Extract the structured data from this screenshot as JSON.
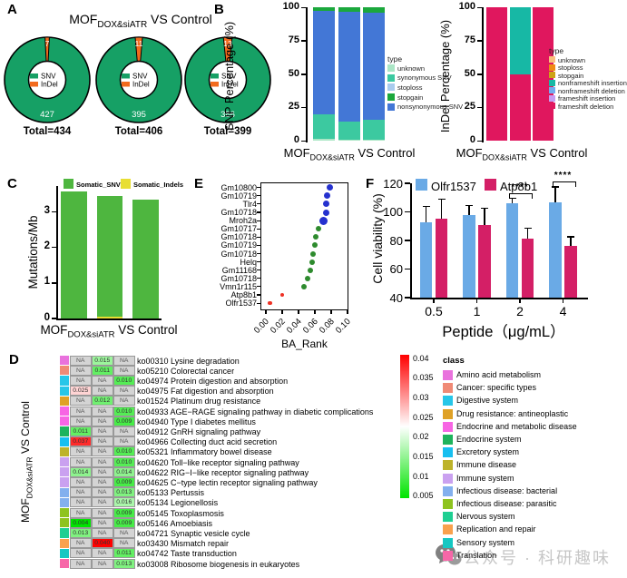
{
  "panel_labels": {
    "A": "A",
    "B": "B",
    "C": "C",
    "D": "D",
    "E": "E",
    "F": "F"
  },
  "group_label": {
    "prefix": "MOF",
    "sub": "DOX&siATR",
    "suffix": " VS Control"
  },
  "watermark": {
    "text": "公众号 · 科研趣味",
    "icon": "wechat-icon",
    "color": "#bdbdbd"
  },
  "chart_data": [
    {
      "id": "A",
      "type": "pie",
      "title": "MOF_DOX&siATR VS Control",
      "legend": [
        {
          "label": "SNV",
          "color": "#16a065"
        },
        {
          "label": "InDel",
          "color": "#f26a1d"
        }
      ],
      "donuts": [
        {
          "SNV": 427,
          "InDel": 7,
          "total_label": "Total=434"
        },
        {
          "SNV": 395,
          "InDel": 11,
          "total_label": "Total=406"
        },
        {
          "SNV": 386,
          "InDel": 13,
          "total_label": "Total=399"
        }
      ]
    },
    {
      "id": "B_snp",
      "type": "bar",
      "stacked": true,
      "ylabel": "SNP  Percentage (%)",
      "ylim": [
        0,
        100
      ],
      "yticks": [
        0,
        25,
        50,
        75,
        100
      ],
      "xlabel_is_group": true,
      "legend_title": "type",
      "legend": [
        {
          "label": "unknown",
          "color": "#abe6c6"
        },
        {
          "label": "synonymous SNV",
          "color": "#3cc9a0"
        },
        {
          "label": "stoploss",
          "color": "#a9cbee"
        },
        {
          "label": "stopgain",
          "color": "#1ba83c"
        },
        {
          "label": "nonsynonymous SNV",
          "color": "#4377d6"
        }
      ],
      "series_order": [
        "unknown",
        "synonymous SNV",
        "nonsynonymous SNV",
        "stopgain"
      ],
      "bars": [
        {
          "unknown": 1.5,
          "synonymous SNV": 18.5,
          "nonsynonymous SNV": 77.5,
          "stopgain": 2.5
        },
        {
          "unknown": 1.0,
          "synonymous SNV": 13.5,
          "nonsynonymous SNV": 82.0,
          "stopgain": 3.5
        },
        {
          "unknown": 1.0,
          "synonymous SNV": 14.5,
          "nonsynonymous SNV": 80.5,
          "stopgain": 4.0
        }
      ]
    },
    {
      "id": "B_indel",
      "type": "bar",
      "stacked": true,
      "ylabel": "InDel  Percentage (%)",
      "ylim": [
        0,
        100
      ],
      "yticks": [
        0,
        25,
        50,
        75,
        100
      ],
      "xlabel_is_group": true,
      "legend_title": "type",
      "legend": [
        {
          "label": "unknown",
          "color": "#f8c07e"
        },
        {
          "label": "stoploss",
          "color": "#ef8c15"
        },
        {
          "label": "stopgain",
          "color": "#cda315"
        },
        {
          "label": "nonframeshift insertion",
          "color": "#17b8a5"
        },
        {
          "label": "nonframeshift deletion",
          "color": "#72abf0"
        },
        {
          "label": "frameshift insertion",
          "color": "#c59df4"
        },
        {
          "label": "frameshift deletion",
          "color": "#e0175e"
        }
      ],
      "series_order": [
        "frameshift deletion",
        "nonframeshift insertion"
      ],
      "bars": [
        {
          "frameshift deletion": 100
        },
        {
          "frameshift deletion": 50,
          "nonframeshift insertion": 50
        },
        {
          "frameshift deletion": 100
        }
      ]
    },
    {
      "id": "C",
      "type": "bar",
      "stacked": true,
      "ylabel": "Mutations/Mb",
      "ylim": [
        0,
        3.75
      ],
      "yticks": [
        0,
        1,
        2,
        3
      ],
      "xlabel_is_group": true,
      "legend": [
        {
          "label": "Somatic_SNVs",
          "color": "#4eb63f"
        },
        {
          "label": "Somatic_Indels",
          "color": "#e8de33"
        }
      ],
      "series_order": [
        "Somatic_Indels",
        "Somatic_SNVs"
      ],
      "bars": [
        {
          "Somatic_SNVs": 3.58
        },
        {
          "Somatic_Indels": 0.05,
          "Somatic_SNVs": 3.4
        },
        {
          "Somatic_SNVs": 3.34
        }
      ]
    },
    {
      "id": "D",
      "type": "heatmap",
      "ylabel_is_group": true,
      "na_text": "NA",
      "scale": {
        "min": 0.004,
        "mid": 0.022,
        "max": 0.04,
        "ticks": [
          "0.04",
          "0.035",
          "0.03",
          "0.025",
          "0.02",
          "0.015",
          "0.01",
          "0.005"
        ],
        "low_color": "#00e400",
        "mid_color": "#ffffff",
        "high_color": "#ff0000"
      },
      "class_legend_title": "class",
      "classes": [
        {
          "label": "Amino acid metabolism",
          "color": "#e972dd"
        },
        {
          "label": "Cancer: specific types",
          "color": "#f08a76"
        },
        {
          "label": "Digestive system",
          "color": "#27c6e8"
        },
        {
          "label": "Drug resistance: antineoplastic",
          "color": "#dfa126"
        },
        {
          "label": "Endocrine and metabolic disease",
          "color": "#f765e4"
        },
        {
          "label": "Endocrine system",
          "color": "#1eb35c"
        },
        {
          "label": "Excretory system",
          "color": "#17bff0"
        },
        {
          "label": "Immune disease",
          "color": "#bdb32a"
        },
        {
          "label": "Immune system",
          "color": "#caa1f0"
        },
        {
          "label": "Infectious disease: bacterial",
          "color": "#83b0ee"
        },
        {
          "label": "Infectious disease: parasitic",
          "color": "#8ec31f"
        },
        {
          "label": "Nervous system",
          "color": "#1fcf92"
        },
        {
          "label": "Replication and repair",
          "color": "#f9a14d"
        },
        {
          "label": "Sensory system",
          "color": "#15c7c2"
        },
        {
          "label": "Translation",
          "color": "#f767a8"
        }
      ],
      "rows": [
        {
          "class": "Amino acid metabolism",
          "values": [
            "NA",
            "0.015",
            "NA"
          ],
          "pathway": "ko00310 Lysine degradation"
        },
        {
          "class": "Cancer: specific types",
          "values": [
            "NA",
            "0.011",
            "NA"
          ],
          "pathway": "ko05210 Colorectal cancer"
        },
        {
          "class": "Digestive system",
          "values": [
            "NA",
            "NA",
            "0.010"
          ],
          "pathway": "ko04974 Protein digestion and absorption"
        },
        {
          "class": "Digestive system",
          "values": [
            "0.025",
            "NA",
            "NA"
          ],
          "pathway": "ko04975 Fat digestion and absorption"
        },
        {
          "class": "Drug resistance: antineoplastic",
          "values": [
            "NA",
            "0.012",
            "NA"
          ],
          "pathway": "ko01524 Platinum drug resistance"
        },
        {
          "class": "Endocrine and metabolic disease",
          "values": [
            "NA",
            "NA",
            "0.010"
          ],
          "pathway": "ko04933 AGE−RAGE signaling pathway in diabetic complications"
        },
        {
          "class": "Endocrine and metabolic disease",
          "values": [
            "NA",
            "NA",
            "0.009"
          ],
          "pathway": "ko04940 Type I diabetes mellitus"
        },
        {
          "class": "Endocrine system",
          "values": [
            "0.011",
            "NA",
            "NA"
          ],
          "pathway": "ko04912 GnRH signaling pathway"
        },
        {
          "class": "Excretory system",
          "values": [
            "0.037",
            "NA",
            "NA"
          ],
          "pathway": "ko04966 Collecting duct acid secretion"
        },
        {
          "class": "Immune disease",
          "values": [
            "NA",
            "NA",
            "0.010"
          ],
          "pathway": "ko05321 Inflammatory bowel disease"
        },
        {
          "class": "Immune system",
          "values": [
            "NA",
            "NA",
            "0.010"
          ],
          "pathway": "ko04620 Toll−like receptor signaling pathway"
        },
        {
          "class": "Immune system",
          "values": [
            "0.014",
            "NA",
            "0.014"
          ],
          "pathway": "ko04622 RIG−I−like receptor signaling pathway"
        },
        {
          "class": "Immune system",
          "values": [
            "NA",
            "NA",
            "0.009"
          ],
          "pathway": "ko04625 C−type lectin receptor signaling pathway"
        },
        {
          "class": "Infectious disease: bacterial",
          "values": [
            "NA",
            "NA",
            "0.013"
          ],
          "pathway": "ko05133 Pertussis"
        },
        {
          "class": "Infectious disease: bacterial",
          "values": [
            "NA",
            "NA",
            "0.016"
          ],
          "pathway": "ko05134 Legionellosis"
        },
        {
          "class": "Infectious disease: parasitic",
          "values": [
            "NA",
            "NA",
            "0.009"
          ],
          "pathway": "ko05145 Toxoplasmosis"
        },
        {
          "class": "Infectious disease: parasitic",
          "values": [
            "0.004",
            "NA",
            "0.009"
          ],
          "pathway": "ko05146 Amoebiasis"
        },
        {
          "class": "Nervous system",
          "values": [
            "0.013",
            "NA",
            "NA"
          ],
          "pathway": "ko04721 Synaptic vesicle cycle"
        },
        {
          "class": "Replication and repair",
          "values": [
            "NA",
            "0.040",
            "NA"
          ],
          "pathway": "ko03430 Mismatch repair"
        },
        {
          "class": "Sensory system",
          "values": [
            "NA",
            "NA",
            "0.011"
          ],
          "pathway": "ko04742 Taste transduction"
        },
        {
          "class": "Translation",
          "values": [
            "NA",
            "NA",
            "0.013"
          ],
          "pathway": "ko03008 Ribosome biogenesis in eukaryotes"
        }
      ]
    },
    {
      "id": "E",
      "type": "scatter",
      "xlabel": "BA_Rank",
      "xlim": [
        0,
        0.1
      ],
      "xticks": [
        "0.00",
        "0.02",
        "0.04",
        "0.06",
        "0.08",
        "0.10"
      ],
      "points": [
        {
          "gene": "Gm10800",
          "value": 0.078,
          "color": "#2531cf",
          "size": 7
        },
        {
          "gene": "Gm10719",
          "value": 0.075,
          "color": "#2531cf",
          "size": 7
        },
        {
          "gene": "Tlr4",
          "value": 0.074,
          "color": "#2531cf",
          "size": 7
        },
        {
          "gene": "Gm10718",
          "value": 0.074,
          "color": "#2531cf",
          "size": 7
        },
        {
          "gene": "Mroh2a",
          "value": 0.071,
          "color": "#2531cf",
          "size": 9
        },
        {
          "gene": "Gm10717",
          "value": 0.064,
          "color": "#2e8b2e",
          "size": 6
        },
        {
          "gene": "Gm10718",
          "value": 0.061,
          "color": "#2e8b2e",
          "size": 6
        },
        {
          "gene": "Gm10719",
          "value": 0.06,
          "color": "#2e8b2e",
          "size": 6
        },
        {
          "gene": "Gm10718",
          "value": 0.058,
          "color": "#2e8b2e",
          "size": 6
        },
        {
          "gene": "Helq",
          "value": 0.057,
          "color": "#2e8b2e",
          "size": 6
        },
        {
          "gene": "Gm11168",
          "value": 0.054,
          "color": "#2e8b2e",
          "size": 6
        },
        {
          "gene": "Gm10718",
          "value": 0.051,
          "color": "#2e8b2e",
          "size": 6
        },
        {
          "gene": "Vmn1r115",
          "value": 0.047,
          "color": "#2e8b2e",
          "size": 6
        },
        {
          "gene": "Atp8b1",
          "value": 0.02,
          "color": "#ee3124",
          "size": 4.5
        },
        {
          "gene": "Olfr1537",
          "value": 0.005,
          "color": "#ee3124",
          "size": 4.5
        }
      ]
    },
    {
      "id": "F",
      "type": "bar",
      "grouped": true,
      "ylabel": "Cell viability (%)",
      "xlabel": "Peptide（μg/mL）",
      "ylim": [
        40,
        120
      ],
      "yticks": [
        40,
        60,
        80,
        100,
        120
      ],
      "categories": [
        "0.5",
        "1",
        "2",
        "4"
      ],
      "series": [
        {
          "name": "Olfr1537",
          "color": "#6aaae6",
          "values": [
            93,
            97.5,
            106,
            106.5
          ],
          "errors": [
            11,
            7,
            3.5,
            11
          ]
        },
        {
          "name": "Atp8b1",
          "color": "#d41f66",
          "values": [
            95,
            91,
            81,
            76.5
          ],
          "errors": [
            14,
            11.5,
            7.5,
            6
          ]
        }
      ],
      "significance": [
        {
          "category_index": 2,
          "label": "****"
        },
        {
          "category_index": 3,
          "label": "****"
        }
      ]
    }
  ]
}
